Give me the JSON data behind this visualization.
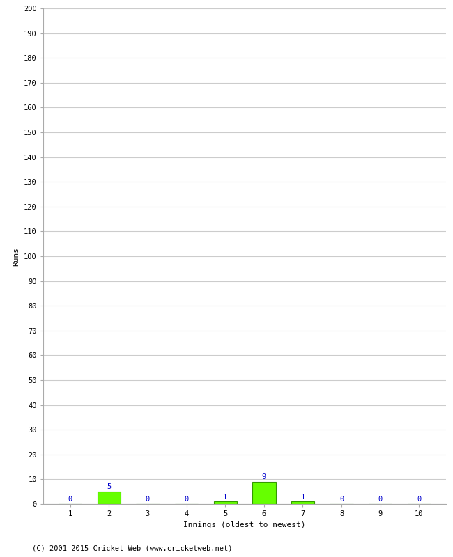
{
  "xlabel": "Innings (oldest to newest)",
  "ylabel": "Runs",
  "categories": [
    1,
    2,
    3,
    4,
    5,
    6,
    7,
    8,
    9,
    10
  ],
  "values": [
    0,
    5,
    0,
    0,
    1,
    9,
    1,
    0,
    0,
    0
  ],
  "bar_color": "#66ff00",
  "bar_edge_color": "#339900",
  "label_color": "#0000cc",
  "ylim": [
    0,
    200
  ],
  "yticks": [
    0,
    10,
    20,
    30,
    40,
    50,
    60,
    70,
    80,
    90,
    100,
    110,
    120,
    130,
    140,
    150,
    160,
    170,
    180,
    190,
    200
  ],
  "background_color": "#ffffff",
  "grid_color": "#cccccc",
  "footer": "(C) 2001-2015 Cricket Web (www.cricketweb.net)",
  "label_fontsize": 7.5,
  "axis_label_fontsize": 8,
  "tick_fontsize": 7.5,
  "footer_fontsize": 7.5
}
